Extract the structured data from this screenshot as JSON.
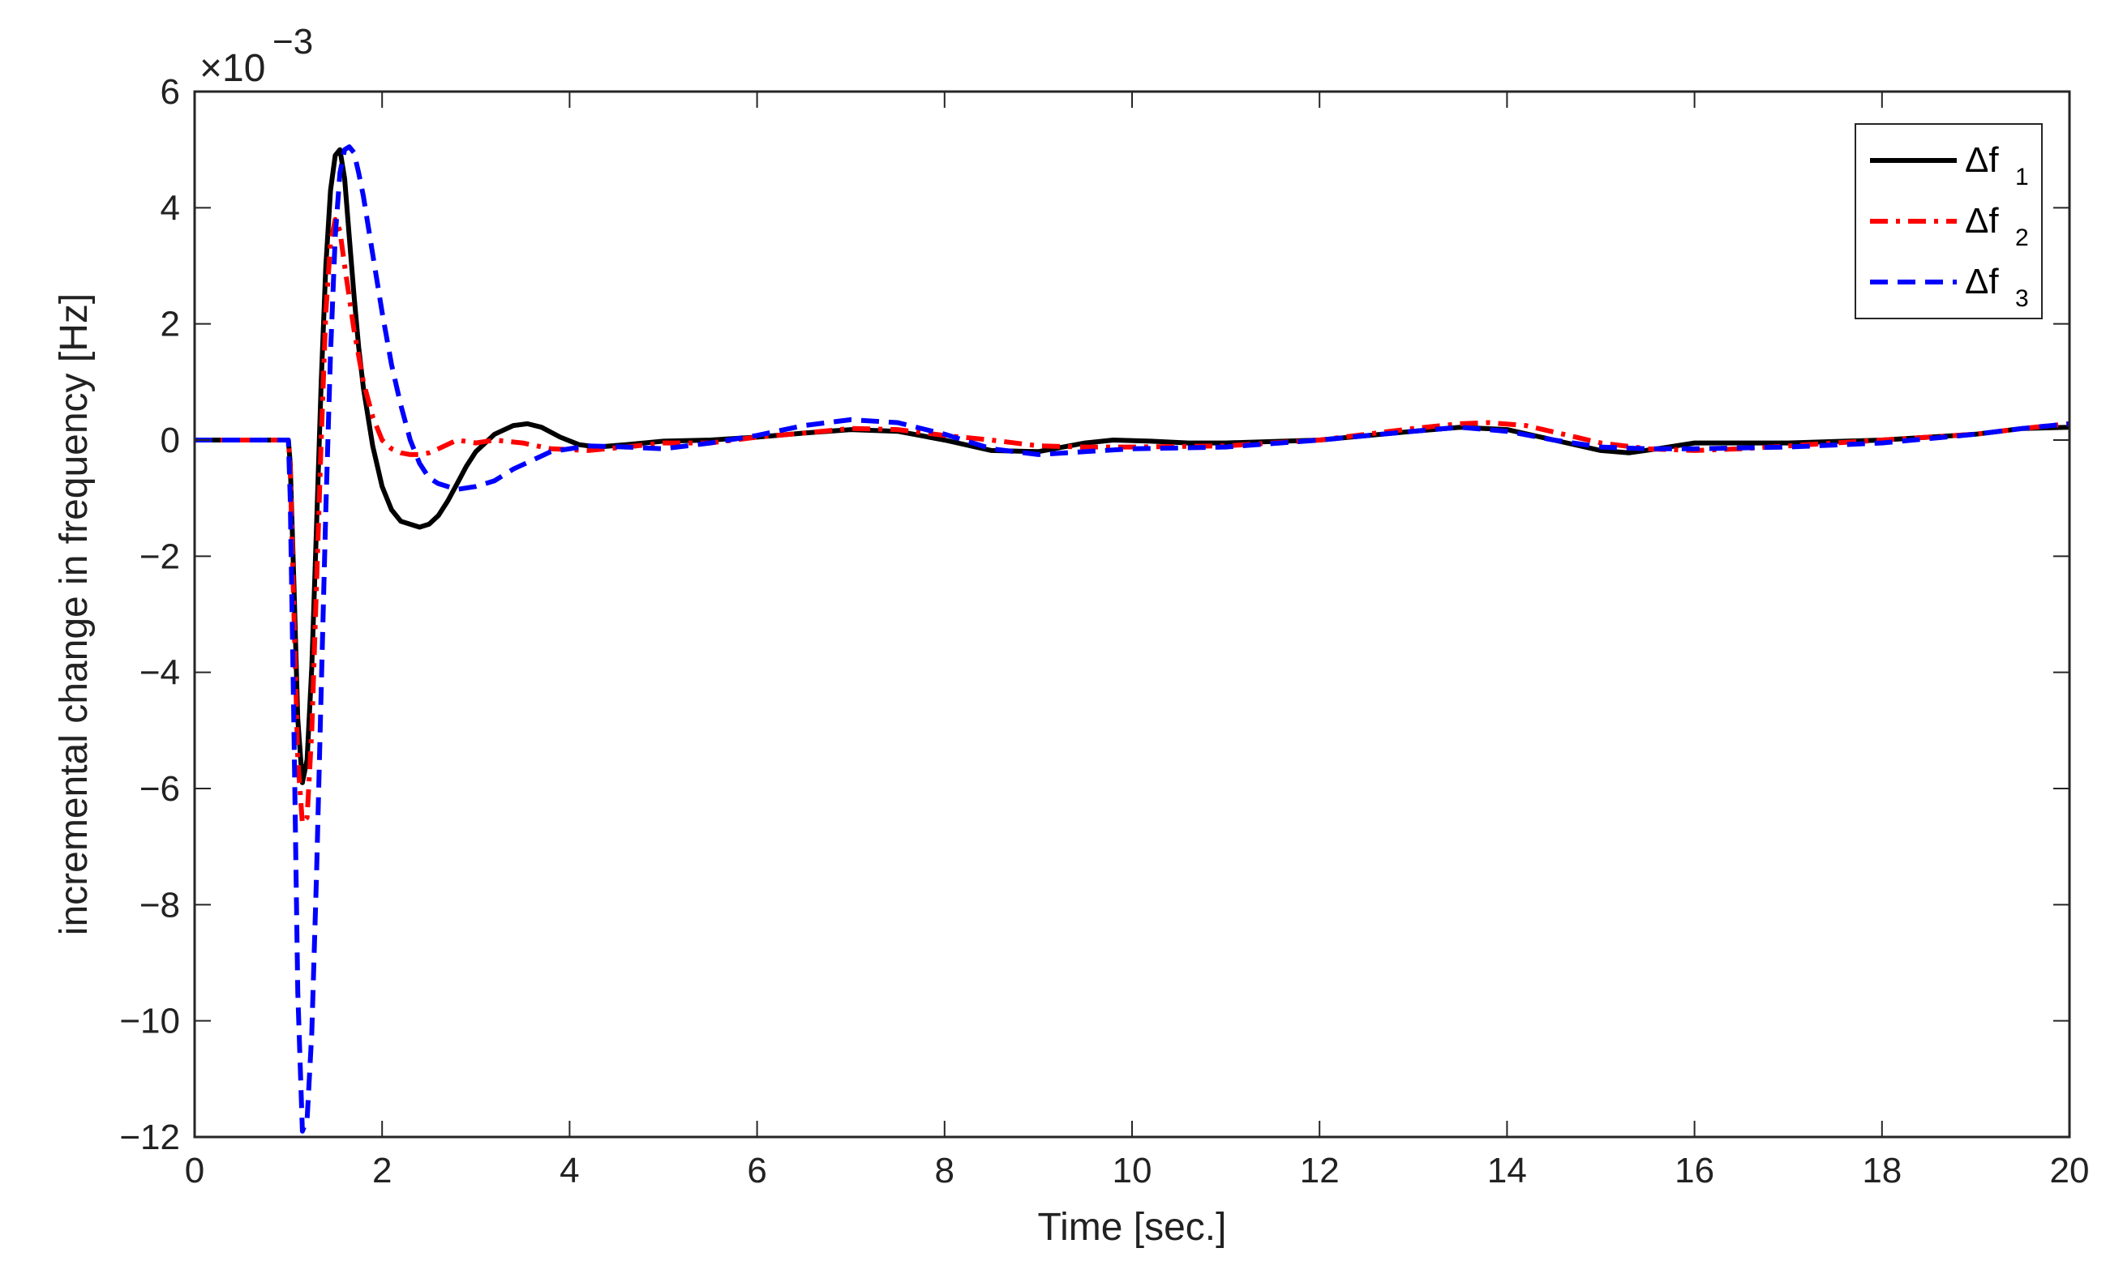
{
  "chart_data": {
    "type": "line",
    "xlabel": "Time [sec.]",
    "ylabel": "incremental change in frequency [Hz]",
    "exponent_label": "×10",
    "exponent_power": "−3",
    "xlim": [
      0,
      20
    ],
    "ylim": [
      -12,
      6
    ],
    "xticks": [
      0,
      2,
      4,
      6,
      8,
      10,
      12,
      14,
      16,
      18,
      20
    ],
    "yticks": [
      -12,
      -10,
      -8,
      -6,
      -4,
      -2,
      0,
      2,
      4,
      6
    ],
    "xtick_labels": [
      "0",
      "2",
      "4",
      "6",
      "8",
      "10",
      "12",
      "14",
      "16",
      "18",
      "20"
    ],
    "ytick_labels": [
      "−12",
      "−10",
      "−8",
      "−6",
      "−4",
      "−2",
      "0",
      "2",
      "4",
      "6"
    ],
    "grid": false,
    "legend_position": "top-right",
    "series": [
      {
        "name": "Δf",
        "subscript": "1",
        "color": "#000000",
        "dash": "solid",
        "x": [
          0,
          1.0,
          1.02,
          1.06,
          1.1,
          1.15,
          1.2,
          1.25,
          1.3,
          1.35,
          1.4,
          1.45,
          1.5,
          1.55,
          1.6,
          1.65,
          1.7,
          1.75,
          1.8,
          1.9,
          2.0,
          2.1,
          2.2,
          2.3,
          2.4,
          2.5,
          2.6,
          2.7,
          2.8,
          2.9,
          3.0,
          3.2,
          3.4,
          3.55,
          3.7,
          3.9,
          4.1,
          4.3,
          4.6,
          5.0,
          5.5,
          6.0,
          6.5,
          7.0,
          7.5,
          8.0,
          8.5,
          9.0,
          9.5,
          9.8,
          10.2,
          10.6,
          11.0,
          12.0,
          13.0,
          13.5,
          14.0,
          14.5,
          15.0,
          15.3,
          15.6,
          16.0,
          16.5,
          17.0,
          18.0,
          19.0,
          19.5,
          20.0
        ],
        "values": [
          0,
          0,
          -0.4,
          -2.5,
          -4.8,
          -5.9,
          -5.5,
          -3.9,
          -1.5,
          1.0,
          3.0,
          4.3,
          4.9,
          5.0,
          4.5,
          3.5,
          2.5,
          1.6,
          0.9,
          -0.1,
          -0.8,
          -1.2,
          -1.4,
          -1.45,
          -1.5,
          -1.45,
          -1.3,
          -1.05,
          -0.75,
          -0.45,
          -0.2,
          0.1,
          0.25,
          0.28,
          0.22,
          0.05,
          -0.08,
          -0.12,
          -0.08,
          -0.02,
          0.0,
          0.05,
          0.12,
          0.18,
          0.15,
          0.0,
          -0.18,
          -0.2,
          -0.05,
          0.0,
          -0.02,
          -0.05,
          -0.05,
          0.0,
          0.15,
          0.22,
          0.18,
          0.0,
          -0.18,
          -0.22,
          -0.15,
          -0.05,
          -0.05,
          -0.05,
          0.0,
          0.1,
          0.2,
          0.22
        ]
      },
      {
        "name": "Δf",
        "subscript": "2",
        "color": "#ff0000",
        "dash": "dashdot",
        "x": [
          0,
          1.0,
          1.02,
          1.06,
          1.1,
          1.15,
          1.2,
          1.25,
          1.3,
          1.35,
          1.4,
          1.45,
          1.5,
          1.55,
          1.6,
          1.7,
          1.8,
          1.9,
          2.0,
          2.1,
          2.2,
          2.3,
          2.4,
          2.5,
          2.6,
          2.8,
          3.0,
          3.2,
          3.5,
          3.8,
          4.2,
          4.6,
          5.0,
          5.5,
          6.0,
          6.5,
          7.0,
          7.5,
          8.0,
          8.5,
          9.0,
          9.5,
          10.0,
          11.0,
          12.0,
          13.0,
          13.5,
          13.8,
          14.2,
          14.6,
          15.0,
          15.5,
          16.0,
          16.5,
          17.0,
          18.0,
          19.0,
          19.5,
          20.0
        ],
        "values": [
          0,
          0,
          -0.5,
          -3.0,
          -5.5,
          -6.6,
          -6.5,
          -5.0,
          -2.5,
          0.0,
          2.2,
          3.4,
          3.8,
          3.6,
          3.0,
          1.9,
          1.0,
          0.4,
          0.0,
          -0.15,
          -0.22,
          -0.25,
          -0.25,
          -0.22,
          -0.15,
          0.0,
          -0.05,
          0.0,
          -0.05,
          -0.15,
          -0.18,
          -0.12,
          -0.05,
          -0.05,
          0.05,
          0.12,
          0.2,
          0.18,
          0.08,
          0.0,
          -0.1,
          -0.12,
          -0.12,
          -0.1,
          0.0,
          0.2,
          0.28,
          0.3,
          0.25,
          0.1,
          -0.05,
          -0.15,
          -0.18,
          -0.15,
          -0.1,
          0.0,
          0.1,
          0.2,
          0.28
        ]
      },
      {
        "name": "Δf",
        "subscript": "3",
        "color": "#0000ff",
        "dash": "dashed",
        "x": [
          0,
          1.0,
          1.02,
          1.06,
          1.1,
          1.15,
          1.2,
          1.25,
          1.3,
          1.35,
          1.4,
          1.45,
          1.5,
          1.55,
          1.6,
          1.65,
          1.7,
          1.75,
          1.8,
          1.9,
          2.0,
          2.1,
          2.2,
          2.3,
          2.4,
          2.5,
          2.6,
          2.8,
          3.0,
          3.2,
          3.4,
          3.6,
          3.8,
          4.2,
          4.6,
          5.0,
          5.5,
          6.0,
          6.5,
          7.0,
          7.5,
          8.0,
          8.5,
          9.0,
          9.5,
          10.0,
          11.0,
          12.0,
          13.0,
          13.5,
          14.0,
          14.5,
          15.0,
          15.5,
          16.0,
          17.0,
          18.0,
          19.0,
          19.5,
          20.0
        ],
        "values": [
          0,
          0,
          -1.0,
          -5.0,
          -9.5,
          -11.9,
          -11.7,
          -10.2,
          -7.5,
          -4.3,
          -1.2,
          1.5,
          3.5,
          4.6,
          5.0,
          5.05,
          4.95,
          4.6,
          4.2,
          3.2,
          2.2,
          1.3,
          0.6,
          0.0,
          -0.4,
          -0.65,
          -0.75,
          -0.85,
          -0.8,
          -0.7,
          -0.5,
          -0.35,
          -0.2,
          -0.1,
          -0.12,
          -0.15,
          -0.05,
          0.08,
          0.25,
          0.35,
          0.3,
          0.1,
          -0.15,
          -0.25,
          -0.2,
          -0.15,
          -0.12,
          0.0,
          0.15,
          0.22,
          0.15,
          0.0,
          -0.12,
          -0.15,
          -0.15,
          -0.12,
          -0.05,
          0.1,
          0.2,
          0.28
        ]
      }
    ]
  }
}
